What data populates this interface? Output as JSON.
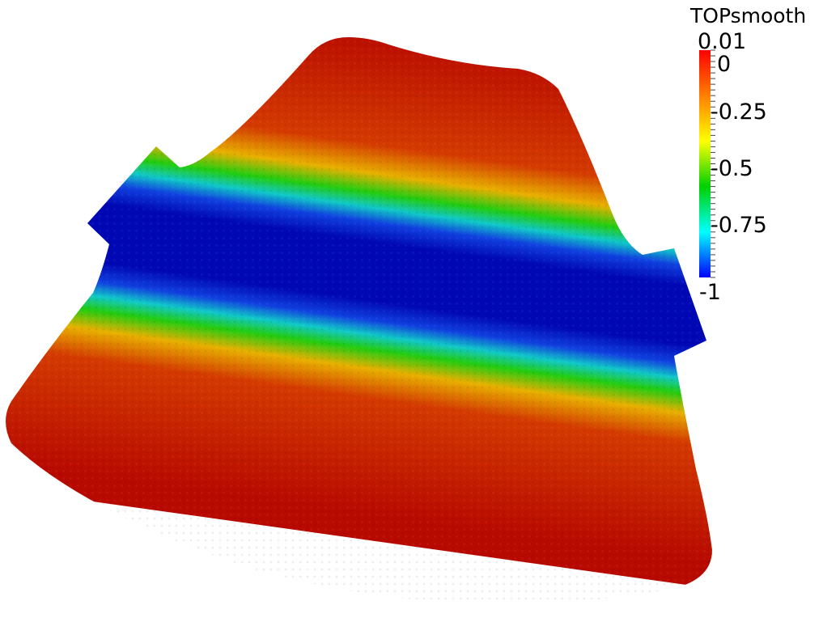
{
  "colorbar": {
    "title": "TOPsmooth",
    "range": [
      -1,
      0.01
    ],
    "labels": [
      {
        "text": "0.01",
        "value": 0.01
      },
      {
        "text": "0",
        "value": 0
      },
      {
        "text": "-0.25",
        "value": -0.25
      },
      {
        "text": "-0.5",
        "value": -0.5
      },
      {
        "text": "-0.75",
        "value": -0.75
      },
      {
        "text": "-1",
        "value": -1
      }
    ],
    "colors": [
      "#0000ff",
      "#00ffff",
      "#00d000",
      "#ffff00",
      "#ff7f00",
      "#ff0000"
    ]
  },
  "field": {
    "outer_color": "#b80900",
    "band_color": "#0008b5"
  }
}
